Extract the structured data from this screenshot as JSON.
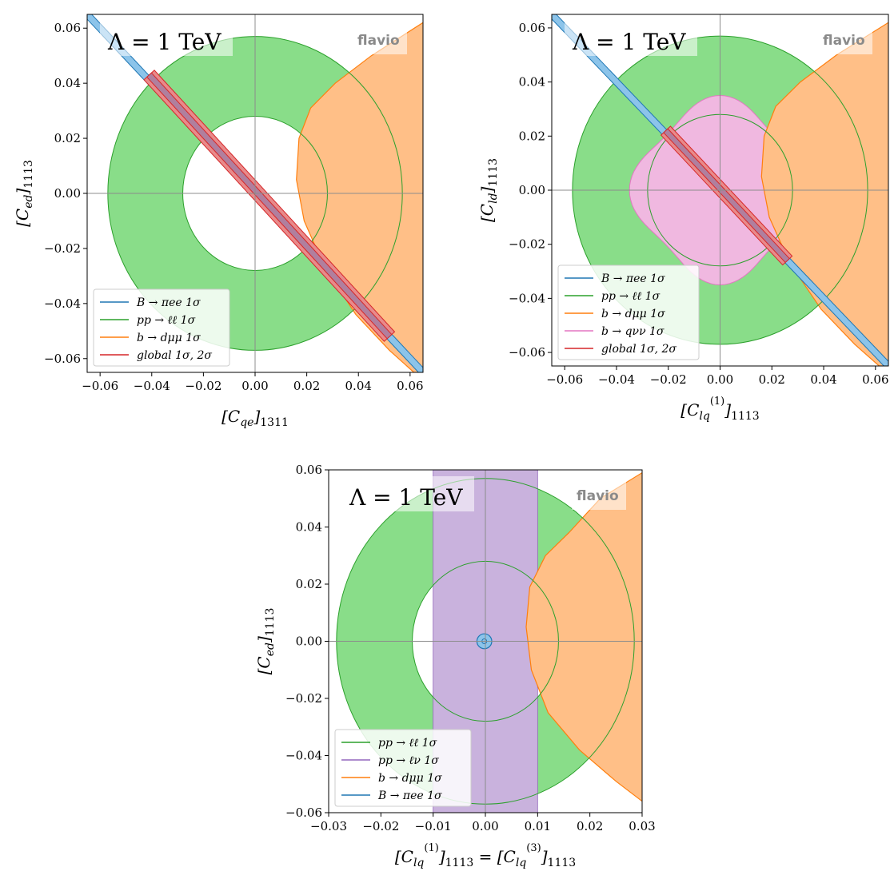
{
  "colors": {
    "blue": "#1f77b4",
    "blue_fill": "#8cc4ea",
    "green": "#2ca02c",
    "green_fill": "#89dd89",
    "orange": "#ff7f0e",
    "orange_fill": "#ffbf87",
    "pink": "#e377c2",
    "pink_fill": "#f0b8e0",
    "purple": "#9467bd",
    "purple_fill": "#c9b2dd",
    "red": "#d62728",
    "red_fill": "#e88a8b",
    "axis_line": "#8c8c8c"
  },
  "chart_data": [
    {
      "id": "panel1",
      "type": "area",
      "xlabel": "[C_qe]_1311",
      "ylabel": "[C_ed]_1113",
      "xlim": [
        -0.065,
        0.065
      ],
      "ylim": [
        -0.065,
        0.065
      ],
      "xticks": [
        -0.06,
        -0.04,
        -0.02,
        0.0,
        0.02,
        0.04,
        0.06
      ],
      "yticks": [
        -0.06,
        -0.04,
        -0.02,
        0.0,
        0.02,
        0.04,
        0.06
      ],
      "xtick_labels": [
        "−0.06",
        "−0.04",
        "−0.02",
        "0.00",
        "0.02",
        "0.04",
        "0.06"
      ],
      "ytick_labels": [
        "−0.06",
        "−0.04",
        "−0.02",
        "0.00",
        "0.02",
        "0.04",
        "0.06"
      ],
      "annotation": "Λ = 1 TeV",
      "watermark": "flavio",
      "legend_position": "lower-left",
      "legend": [
        {
          "label": "B → πee 1σ",
          "color": "blue"
        },
        {
          "label": "pp → ℓℓ 1σ",
          "color": "green"
        },
        {
          "label": "b → dμμ 1σ",
          "color": "orange"
        },
        {
          "label": "global 1σ, 2σ",
          "color": "red"
        }
      ],
      "regions": {
        "pp_ll": {
          "inner_radius": 0.028,
          "outer_radius": 0.057
        },
        "b_dmumu": {
          "boundary": [
            [
              0.065,
              0.062
            ],
            [
              0.045,
              0.05
            ],
            [
              0.031,
              0.04
            ],
            [
              0.0215,
              0.031
            ],
            [
              0.017,
              0.02
            ],
            [
              0.016,
              0.005
            ],
            [
              0.019,
              -0.01
            ],
            [
              0.027,
              -0.027
            ],
            [
              0.039,
              -0.044
            ],
            [
              0.052,
              -0.057
            ],
            [
              0.065,
              -0.068
            ]
          ]
        },
        "b_piee": {
          "line": [
            [
              -0.065,
              0.065
            ],
            [
              0.065,
              -0.065
            ]
          ],
          "half_width": 0.0012
        },
        "global": {
          "line": [
            [
              -0.041,
              0.043
            ],
            [
              0.052,
              -0.052
            ]
          ],
          "half_width": 0.0016
        }
      }
    },
    {
      "id": "panel2",
      "type": "area",
      "xlabel": "[C_lq^(1)]_1113",
      "ylabel": "[C_ld]_1113",
      "xlim": [
        -0.065,
        0.065
      ],
      "ylim": [
        -0.065,
        0.065
      ],
      "xticks": [
        -0.06,
        -0.04,
        -0.02,
        0.0,
        0.02,
        0.04,
        0.06
      ],
      "yticks": [
        -0.06,
        -0.04,
        -0.02,
        0.0,
        0.02,
        0.04,
        0.06
      ],
      "xtick_labels": [
        "−0.06",
        "−0.04",
        "−0.02",
        "0.00",
        "0.02",
        "0.04",
        "0.06"
      ],
      "ytick_labels": [
        "−0.06",
        "−0.04",
        "−0.02",
        "0.00",
        "0.02",
        "0.04",
        "0.06"
      ],
      "annotation": "Λ = 1 TeV",
      "watermark": "flavio",
      "legend_position": "lower-left",
      "legend": [
        {
          "label": "B → πee 1σ",
          "color": "blue"
        },
        {
          "label": "pp → ℓℓ 1σ",
          "color": "green"
        },
        {
          "label": "b → dμμ 1σ",
          "color": "orange"
        },
        {
          "label": "b → qνν 1σ",
          "color": "pink"
        },
        {
          "label": "global 1σ, 2σ",
          "color": "red"
        }
      ],
      "regions": {
        "pp_ll": {
          "inner_radius": 0.028,
          "outer_radius": 0.057
        },
        "b_qnunu": {
          "radius": 0.035,
          "shape": "squircle"
        },
        "b_dmumu": {
          "boundary": [
            [
              0.065,
              0.062
            ],
            [
              0.045,
              0.05
            ],
            [
              0.031,
              0.04
            ],
            [
              0.0215,
              0.031
            ],
            [
              0.017,
              0.02
            ],
            [
              0.016,
              0.005
            ],
            [
              0.019,
              -0.01
            ],
            [
              0.027,
              -0.027
            ],
            [
              0.039,
              -0.044
            ],
            [
              0.052,
              -0.057
            ],
            [
              0.065,
              -0.068
            ]
          ]
        },
        "b_piee": {
          "line": [
            [
              -0.065,
              0.065
            ],
            [
              0.065,
              -0.065
            ]
          ],
          "half_width": 0.0012
        },
        "global": {
          "line": [
            [
              -0.021,
              0.022
            ],
            [
              0.026,
              -0.026
            ]
          ],
          "half_width": 0.0015
        }
      }
    },
    {
      "id": "panel3",
      "type": "area",
      "xlabel": "[C_lq^(1)]_1113 = [C_lq^(3)]_1113",
      "ylabel": "[C_ed]_1113",
      "xlim": [
        -0.03,
        0.03
      ],
      "ylim": [
        -0.06,
        0.06
      ],
      "xticks": [
        -0.03,
        -0.02,
        -0.01,
        0.0,
        0.01,
        0.02,
        0.03
      ],
      "yticks": [
        -0.06,
        -0.04,
        -0.02,
        0.0,
        0.02,
        0.04,
        0.06
      ],
      "xtick_labels": [
        "−0.03",
        "−0.02",
        "−0.01",
        "0.00",
        "0.01",
        "0.02",
        "0.03"
      ],
      "ytick_labels": [
        "−0.06",
        "−0.04",
        "−0.02",
        "0.00",
        "0.02",
        "0.04",
        "0.06"
      ],
      "annotation": "Λ = 1 TeV",
      "watermark": "flavio",
      "legend_position": "lower-left",
      "legend": [
        {
          "label": "pp → ℓℓ 1σ",
          "color": "green"
        },
        {
          "label": "pp → ℓν 1σ",
          "color": "purple"
        },
        {
          "label": "b → dμμ 1σ",
          "color": "orange"
        },
        {
          "label": "B → πee 1σ",
          "color": "blue"
        }
      ],
      "regions": {
        "pp_ll": {
          "x_scale": 0.5,
          "inner_radius": 0.028,
          "outer_radius": 0.057
        },
        "pp_lnu": {
          "x_range": [
            -0.01,
            0.01
          ]
        },
        "b_dmumu": {
          "boundary": [
            [
              0.03,
              0.059
            ],
            [
              0.022,
              0.05
            ],
            [
              0.016,
              0.038
            ],
            [
              0.0115,
              0.03
            ],
            [
              0.0085,
              0.019
            ],
            [
              0.0078,
              0.005
            ],
            [
              0.0088,
              -0.01
            ],
            [
              0.012,
              -0.025
            ],
            [
              0.018,
              -0.038
            ],
            [
              0.025,
              -0.049
            ],
            [
              0.03,
              -0.056
            ]
          ]
        },
        "b_piee": {
          "center": [
            -0.0002,
            0.0
          ],
          "outer": [
            0.0013,
            0.0026
          ],
          "inner": [
            0.0005,
            0.001
          ]
        }
      }
    }
  ]
}
